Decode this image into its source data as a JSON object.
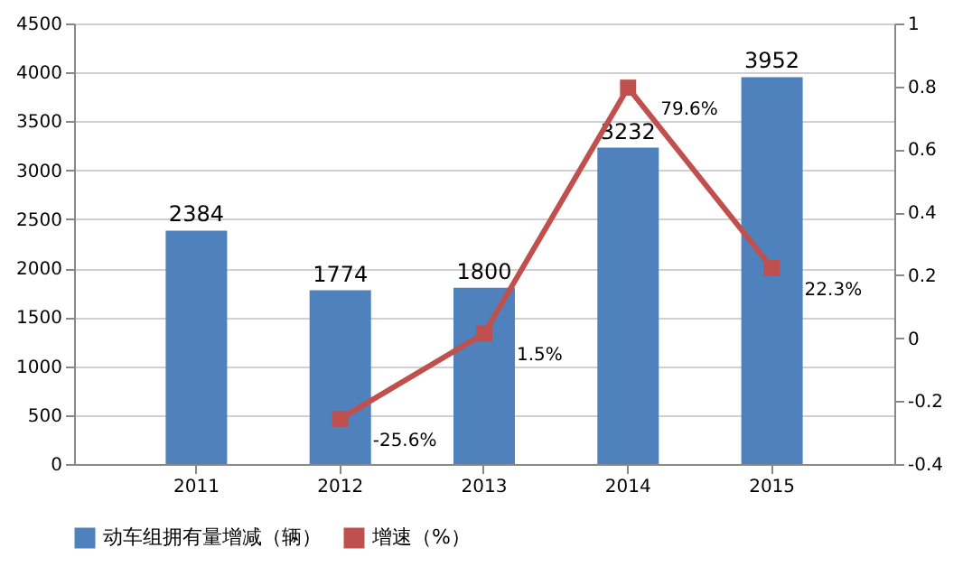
{
  "chart_data": {
    "type": "bar",
    "categories": [
      "2011",
      "2012",
      "2013",
      "2014",
      "2015"
    ],
    "series": [
      {
        "name": "动车组拥有量增减（辆）",
        "color": "#4f81bd",
        "values": [
          2384,
          1774,
          1800,
          3232,
          3952
        ]
      },
      {
        "name": "增速（%）",
        "type": "line",
        "axis": "y2",
        "color": "#c0504d",
        "values": [
          null,
          -0.256,
          0.015,
          0.796,
          0.223
        ],
        "value_labels": [
          null,
          "-25.6%",
          "1.5%",
          "79.6%",
          "22.3%"
        ]
      }
    ],
    "ylim": [
      0,
      4500
    ],
    "yticks": [
      0,
      500,
      1000,
      1500,
      2000,
      2500,
      3000,
      3500,
      4000,
      4500
    ],
    "y2lim": [
      -0.4,
      1
    ],
    "y2ticks": [
      -0.4,
      -0.2,
      0,
      0.2,
      0.4,
      0.6,
      0.8,
      1
    ],
    "data_labels": true,
    "grid": "y",
    "legend": "bottom",
    "marker": "square",
    "line_style": "solid"
  }
}
